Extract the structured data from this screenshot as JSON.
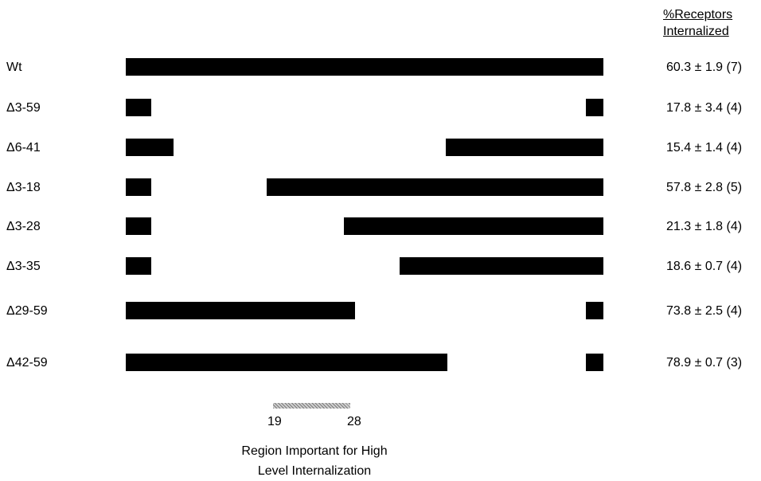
{
  "header": {
    "line1": "%Receptors",
    "line2": "Internalized"
  },
  "constructs": [
    {
      "label": "Wt",
      "value": "60.3 ± 1.9 (7)"
    },
    {
      "label": "Δ3-59",
      "value": "17.8 ± 3.4 (4)"
    },
    {
      "label": "Δ6-41",
      "value": "15.4 ± 1.4 (4)"
    },
    {
      "label": "Δ3-18",
      "value": "57.8 ± 2.8 (5)"
    },
    {
      "label": "Δ3-28",
      "value": "21.3 ± 1.8 (4)"
    },
    {
      "label": "Δ3-35",
      "value": "18.6 ± 0.7 (4)"
    },
    {
      "label": "Δ29-59",
      "value": "73.8 ± 2.5 (4)"
    },
    {
      "label": "Δ42-59",
      "value": "78.9 ± 0.7 (3)"
    }
  ],
  "region": {
    "start_label": "19",
    "end_label": "28",
    "caption_line1": "Region Important for High",
    "caption_line2": "Level Internalization",
    "fill_color": "#a0a0a0"
  },
  "bar_color": "#000000"
}
